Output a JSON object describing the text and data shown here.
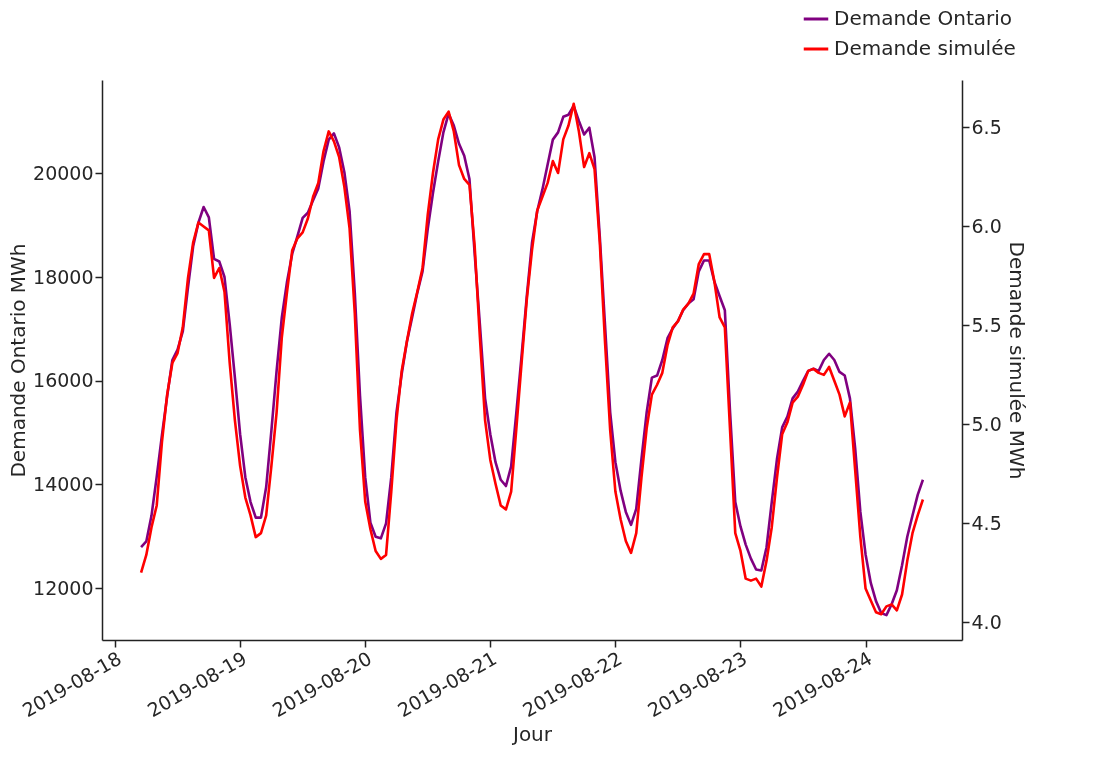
{
  "chart_data": {
    "type": "line",
    "xlabel": "Jour",
    "ylabel": "Demande Ontario MWh",
    "y2label": "Demande simulée MWh",
    "x": [
      "2019-08-18T05:00",
      "2019-08-18T06:00",
      "2019-08-18T07:00",
      "2019-08-18T08:00",
      "2019-08-18T09:00",
      "2019-08-18T10:00",
      "2019-08-18T11:00",
      "2019-08-18T12:00",
      "2019-08-18T13:00",
      "2019-08-18T14:00",
      "2019-08-18T15:00",
      "2019-08-18T16:00",
      "2019-08-18T17:00",
      "2019-08-18T18:00",
      "2019-08-18T19:00",
      "2019-08-18T20:00",
      "2019-08-18T21:00",
      "2019-08-18T22:00",
      "2019-08-18T23:00",
      "2019-08-19T00:00",
      "2019-08-19T01:00",
      "2019-08-19T02:00",
      "2019-08-19T03:00",
      "2019-08-19T04:00",
      "2019-08-19T05:00",
      "2019-08-19T06:00",
      "2019-08-19T07:00",
      "2019-08-19T08:00",
      "2019-08-19T09:00",
      "2019-08-19T10:00",
      "2019-08-19T11:00",
      "2019-08-19T12:00",
      "2019-08-19T13:00",
      "2019-08-19T14:00",
      "2019-08-19T15:00",
      "2019-08-19T16:00",
      "2019-08-19T17:00",
      "2019-08-19T18:00",
      "2019-08-19T19:00",
      "2019-08-19T20:00",
      "2019-08-19T21:00",
      "2019-08-19T22:00",
      "2019-08-19T23:00",
      "2019-08-20T00:00",
      "2019-08-20T01:00",
      "2019-08-20T02:00",
      "2019-08-20T03:00",
      "2019-08-20T04:00",
      "2019-08-20T05:00",
      "2019-08-20T06:00",
      "2019-08-20T07:00",
      "2019-08-20T08:00",
      "2019-08-20T09:00",
      "2019-08-20T10:00",
      "2019-08-20T11:00",
      "2019-08-20T12:00",
      "2019-08-20T13:00",
      "2019-08-20T14:00",
      "2019-08-20T15:00",
      "2019-08-20T16:00",
      "2019-08-20T17:00",
      "2019-08-20T18:00",
      "2019-08-20T19:00",
      "2019-08-20T20:00",
      "2019-08-20T21:00",
      "2019-08-20T22:00",
      "2019-08-20T23:00",
      "2019-08-21T00:00",
      "2019-08-21T01:00",
      "2019-08-21T02:00",
      "2019-08-21T03:00",
      "2019-08-21T04:00",
      "2019-08-21T05:00",
      "2019-08-21T06:00",
      "2019-08-21T07:00",
      "2019-08-21T08:00",
      "2019-08-21T09:00",
      "2019-08-21T10:00",
      "2019-08-21T11:00",
      "2019-08-21T12:00",
      "2019-08-21T13:00",
      "2019-08-21T14:00",
      "2019-08-21T15:00",
      "2019-08-21T16:00",
      "2019-08-21T17:00",
      "2019-08-21T18:00",
      "2019-08-21T19:00",
      "2019-08-21T20:00",
      "2019-08-21T21:00",
      "2019-08-21T22:00",
      "2019-08-21T23:00",
      "2019-08-22T00:00",
      "2019-08-22T01:00",
      "2019-08-22T02:00",
      "2019-08-22T03:00",
      "2019-08-22T04:00",
      "2019-08-22T05:00",
      "2019-08-22T06:00",
      "2019-08-22T07:00",
      "2019-08-22T08:00",
      "2019-08-22T09:00",
      "2019-08-22T10:00",
      "2019-08-22T11:00",
      "2019-08-22T12:00",
      "2019-08-22T13:00",
      "2019-08-22T14:00",
      "2019-08-22T15:00",
      "2019-08-22T16:00",
      "2019-08-22T17:00",
      "2019-08-22T18:00",
      "2019-08-22T19:00",
      "2019-08-22T20:00",
      "2019-08-22T21:00",
      "2019-08-22T22:00",
      "2019-08-22T23:00",
      "2019-08-23T00:00",
      "2019-08-23T01:00",
      "2019-08-23T02:00",
      "2019-08-23T03:00",
      "2019-08-23T04:00",
      "2019-08-23T05:00",
      "2019-08-23T06:00",
      "2019-08-23T07:00",
      "2019-08-23T08:00",
      "2019-08-23T09:00",
      "2019-08-23T10:00",
      "2019-08-23T11:00",
      "2019-08-23T12:00",
      "2019-08-23T13:00",
      "2019-08-23T14:00",
      "2019-08-23T15:00",
      "2019-08-23T16:00",
      "2019-08-23T17:00",
      "2019-08-23T18:00",
      "2019-08-23T19:00",
      "2019-08-23T20:00",
      "2019-08-23T21:00",
      "2019-08-23T22:00",
      "2019-08-23T23:00",
      "2019-08-24T00:00",
      "2019-08-24T01:00",
      "2019-08-24T02:00",
      "2019-08-24T03:00",
      "2019-08-24T04:00",
      "2019-08-24T05:00",
      "2019-08-24T06:00",
      "2019-08-24T07:00",
      "2019-08-24T08:00",
      "2019-08-24T09:00",
      "2019-08-24T10:00",
      "2019-08-24T11:00"
    ],
    "xlim": [
      "2019-08-17T21:30",
      "2019-08-24T18:30"
    ],
    "xticks": [
      "2019-08-18",
      "2019-08-19",
      "2019-08-20",
      "2019-08-21",
      "2019-08-22",
      "2019-08-23",
      "2019-08-24"
    ],
    "ylim": [
      11000,
      21800
    ],
    "yticks": [
      12000,
      14000,
      16000,
      18000,
      20000
    ],
    "y2lim": [
      3.91,
      6.74
    ],
    "y2ticks": [
      {
        "value": 4,
        "label": "4.0"
      },
      4.5,
      {
        "value": 5,
        "label": "5.0"
      },
      5.5,
      {
        "value": 6,
        "label": "6.0"
      },
      6.5
    ],
    "legend": "top right",
    "grid": false,
    "series": [
      {
        "name": "Demande Ontario",
        "color": "#800080",
        "values": [
          12790,
          12900,
          13400,
          14150,
          14950,
          15700,
          16400,
          16600,
          16950,
          17800,
          18600,
          19050,
          19350,
          19150,
          18350,
          18300,
          18000,
          17090,
          16060,
          14970,
          14140,
          13660,
          13360,
          13360,
          13950,
          15040,
          16190,
          17220,
          17910,
          18450,
          18790,
          19140,
          19240,
          19480,
          19710,
          20230,
          20650,
          20770,
          20500,
          20020,
          19270,
          17700,
          15710,
          14140,
          13260,
          12990,
          12960,
          13250,
          14140,
          15390,
          16130,
          16750,
          17220,
          17700,
          18110,
          18930,
          19620,
          20230,
          20790,
          21150,
          20920,
          20570,
          20340,
          19890,
          18450,
          17090,
          15660,
          14970,
          14430,
          14090,
          13970,
          14350,
          15390,
          16480,
          17630,
          18660,
          19270,
          19690,
          20170,
          20650,
          20790,
          21090,
          21130,
          21300,
          21010,
          20750,
          20880,
          20310,
          18790,
          17090,
          15390,
          14430,
          13880,
          13470,
          13220,
          13530,
          14490,
          15390,
          16060,
          16100,
          16400,
          16820,
          17010,
          17150,
          17360,
          17490,
          17570,
          18110,
          18320,
          18320,
          17910,
          17630,
          17360,
          15390,
          13660,
          13190,
          12840,
          12570,
          12360,
          12340,
          12790,
          13660,
          14490,
          15100,
          15310,
          15660,
          15790,
          16000,
          16190,
          16230,
          16190,
          16400,
          16520,
          16400,
          16170,
          16100,
          15660,
          14700,
          13470,
          12650,
          12100,
          11750,
          11520,
          11480,
          11690,
          11960,
          12440,
          12990,
          13400,
          13800,
          14090
        ]
      },
      {
        "name": "Demande simulée",
        "color": "#ff0000",
        "axis": "y2",
        "values": [
          4.25,
          4.34,
          4.48,
          4.59,
          4.91,
          5.15,
          5.31,
          5.36,
          5.49,
          5.74,
          5.92,
          6.02,
          6.0,
          5.98,
          5.74,
          5.79,
          5.67,
          5.31,
          5.02,
          4.79,
          4.63,
          4.54,
          4.43,
          4.45,
          4.54,
          4.79,
          5.06,
          5.44,
          5.67,
          5.88,
          5.94,
          5.97,
          6.04,
          6.15,
          6.22,
          6.38,
          6.48,
          6.43,
          6.35,
          6.2,
          5.99,
          5.56,
          4.97,
          4.61,
          4.47,
          4.36,
          4.32,
          4.34,
          4.66,
          5.02,
          5.27,
          5.42,
          5.56,
          5.67,
          5.79,
          6.06,
          6.27,
          6.44,
          6.54,
          6.58,
          6.48,
          6.31,
          6.24,
          6.21,
          5.9,
          5.44,
          5.02,
          4.82,
          4.7,
          4.59,
          4.57,
          4.66,
          4.98,
          5.31,
          5.63,
          5.88,
          6.08,
          6.15,
          6.22,
          6.33,
          6.27,
          6.44,
          6.51,
          6.62,
          6.48,
          6.3,
          6.37,
          6.29,
          5.92,
          5.42,
          4.97,
          4.66,
          4.52,
          4.41,
          4.35,
          4.45,
          4.73,
          4.98,
          5.15,
          5.2,
          5.26,
          5.4,
          5.49,
          5.52,
          5.58,
          5.61,
          5.66,
          5.81,
          5.86,
          5.86,
          5.72,
          5.54,
          5.49,
          4.97,
          4.45,
          4.36,
          4.22,
          4.21,
          4.22,
          4.18,
          4.31,
          4.48,
          4.73,
          4.95,
          5.01,
          5.11,
          5.14,
          5.2,
          5.27,
          5.28,
          5.26,
          5.25,
          5.29,
          5.22,
          5.15,
          5.04,
          5.11,
          4.77,
          4.43,
          4.17,
          4.11,
          4.05,
          4.04,
          4.08,
          4.09,
          4.06,
          4.14,
          4.31,
          4.45,
          4.54,
          4.62
        ]
      }
    ]
  }
}
